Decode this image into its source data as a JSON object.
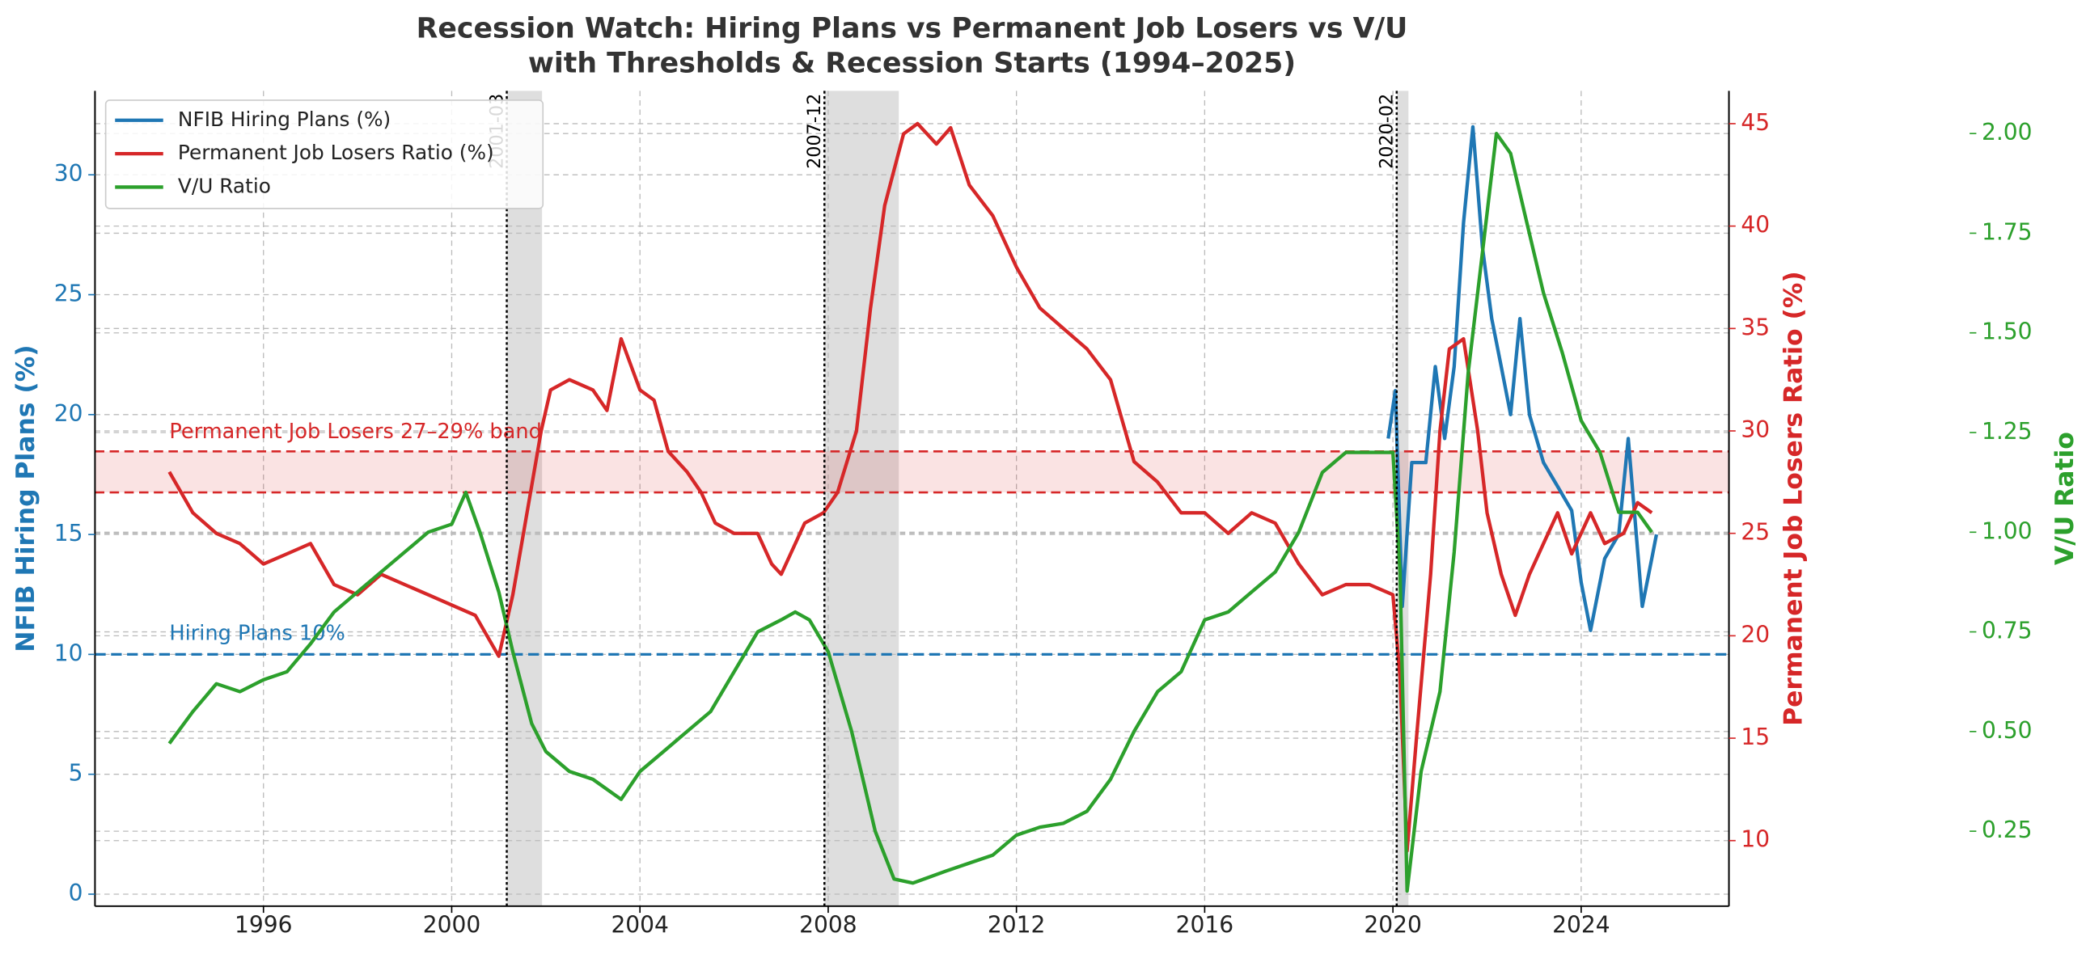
{
  "chart_data": {
    "type": "line",
    "title": [
      "Recession Watch: Hiring Plans vs Permanent Job Losers vs V/U",
      "with Thresholds & Recession Starts (1994–2025)"
    ],
    "ylabel": "NFIB Hiring Plans (%)",
    "y2label": "Permanent Job Losers Ratio (%)",
    "y3label": "V/U Ratio",
    "xlim": [
      1992.42,
      2027.14
    ],
    "xticks": [
      1996,
      2000,
      2004,
      2008,
      2012,
      2016,
      2020,
      2024
    ],
    "ylim": [
      -0.5,
      33.5
    ],
    "yticks": [
      0,
      5,
      10,
      15,
      20,
      25,
      30
    ],
    "y2lim": [
      6.8,
      46.6
    ],
    "y2ticks": [
      10,
      15,
      20,
      25,
      30,
      35,
      40,
      45
    ],
    "y3lim": [
      0.062,
      2.107
    ],
    "y3ticks": [
      0.25,
      {
        "value": 0.5,
        "label": "0.50"
      },
      0.75,
      {
        "value": 1.0,
        "label": "1.00"
      },
      1.25,
      {
        "value": 1.5,
        "label": "1.50"
      },
      1.75,
      {
        "value": 2.0,
        "label": "2.00"
      }
    ],
    "grid": true,
    "legend": "upper left",
    "series": [
      {
        "name": "NFIB Hiring Plans (%)",
        "color": "#1f77b4",
        "axis": "y",
        "x": [
          2019.9,
          2020.05,
          2020.2,
          2020.4,
          2020.7,
          2020.9,
          2021.1,
          2021.3,
          2021.5,
          2021.7,
          2021.9,
          2022.1,
          2022.3,
          2022.5,
          2022.7,
          2022.9,
          2023.2,
          2023.5,
          2023.8,
          2024.0,
          2024.2,
          2024.5,
          2024.8,
          2025.0,
          2025.3,
          2025.5,
          2025.6
        ],
        "values": [
          19,
          21,
          12,
          18,
          18,
          22,
          19,
          22,
          28,
          32,
          27,
          24,
          22,
          20,
          24,
          20,
          18,
          17,
          16,
          13,
          11,
          14,
          15,
          19,
          12,
          14,
          15
        ]
      },
      {
        "name": "Permanent Job Losers Ratio (%)",
        "color": "#d62728",
        "axis": "y2",
        "x": [
          1994.0,
          1994.5,
          1995,
          1995.5,
          1996,
          1996.5,
          1997,
          1997.5,
          1998,
          1998.5,
          1999,
          1999.5,
          2000,
          2000.5,
          2001,
          2001.3,
          2001.6,
          2001.9,
          2002.1,
          2002.5,
          2003,
          2003.3,
          2003.6,
          2004,
          2004.3,
          2004.6,
          2005,
          2005.3,
          2005.6,
          2006,
          2006.5,
          2006.8,
          2007,
          2007.5,
          2007.9,
          2008.2,
          2008.6,
          2008.9,
          2009.2,
          2009.6,
          2009.9,
          2010.3,
          2010.6,
          2011,
          2011.5,
          2012,
          2012.5,
          2013,
          2013.5,
          2014,
          2014.5,
          2015,
          2015.5,
          2016,
          2016.5,
          2017,
          2017.5,
          2018,
          2018.5,
          2019,
          2019.5,
          2020.0,
          2020.15,
          2020.3,
          2020.5,
          2020.8,
          2021,
          2021.2,
          2021.5,
          2021.8,
          2022,
          2022.3,
          2022.6,
          2022.9,
          2023.2,
          2023.5,
          2023.8,
          2024.2,
          2024.5,
          2024.9,
          2025.2,
          2025.5
        ],
        "values": [
          28,
          26,
          25,
          24.5,
          23.5,
          24,
          24.5,
          22.5,
          22,
          23,
          22.5,
          22,
          21.5,
          21,
          19,
          22,
          26,
          30,
          32,
          32.5,
          32,
          31,
          34.5,
          32,
          31.5,
          29,
          28,
          27,
          25.5,
          25,
          25,
          23.5,
          23,
          25.5,
          26,
          27,
          30,
          36,
          41,
          44.5,
          45,
          44,
          44.8,
          42,
          40.5,
          38,
          36,
          35,
          34,
          32.5,
          28.5,
          27.5,
          26,
          26,
          25,
          26,
          25.5,
          23.5,
          22,
          22.5,
          22.5,
          22,
          18,
          9.5,
          15,
          23,
          30,
          34,
          34.5,
          30,
          26,
          23,
          21,
          23,
          24.5,
          26,
          24,
          26,
          24.5,
          25,
          26.5,
          26
        ]
      },
      {
        "name": "V/U Ratio",
        "color": "#2ca02c",
        "axis": "y3",
        "x": [
          1994.0,
          1994.5,
          1995,
          1995.5,
          1996,
          1996.5,
          1997,
          1997.5,
          1998,
          1998.5,
          1999,
          1999.5,
          2000,
          2000.3,
          2000.6,
          2001,
          2001.3,
          2001.7,
          2002,
          2002.5,
          2003,
          2003.6,
          2004,
          2004.5,
          2005,
          2005.5,
          2006,
          2006.5,
          2007,
          2007.3,
          2007.6,
          2008,
          2008.5,
          2009,
          2009.4,
          2009.8,
          2010.5,
          2011,
          2011.5,
          2012,
          2012.5,
          2013,
          2013.5,
          2014,
          2014.5,
          2015,
          2015.5,
          2016,
          2016.5,
          2017,
          2017.5,
          2018,
          2018.5,
          2019,
          2019.5,
          2020.0,
          2020.15,
          2020.3,
          2020.6,
          2021,
          2021.3,
          2021.6,
          2021.9,
          2022.2,
          2022.5,
          2022.8,
          2023.2,
          2023.6,
          2024,
          2024.4,
          2024.8,
          2025.2,
          2025.5
        ],
        "values": [
          0.47,
          0.55,
          0.62,
          0.6,
          0.63,
          0.65,
          0.72,
          0.8,
          0.85,
          0.9,
          0.95,
          1.0,
          1.02,
          1.1,
          1.0,
          0.85,
          0.7,
          0.52,
          0.45,
          0.4,
          0.38,
          0.33,
          0.4,
          0.45,
          0.5,
          0.55,
          0.65,
          0.75,
          0.78,
          0.8,
          0.78,
          0.7,
          0.5,
          0.25,
          0.13,
          0.12,
          0.15,
          0.17,
          0.19,
          0.24,
          0.26,
          0.27,
          0.3,
          0.38,
          0.5,
          0.6,
          0.65,
          0.78,
          0.8,
          0.85,
          0.9,
          1.0,
          1.15,
          1.2,
          1.2,
          1.2,
          0.9,
          0.1,
          0.4,
          0.6,
          0.95,
          1.4,
          1.7,
          2.0,
          1.95,
          1.8,
          1.6,
          1.45,
          1.28,
          1.2,
          1.05,
          1.05,
          1.0
        ]
      }
    ],
    "thresholds": [
      {
        "label": "Hiring Plans 10%",
        "value": 10,
        "axis": "y",
        "color": "#1f77b4"
      }
    ],
    "bands": [
      {
        "label": "Permanent Job Losers 27–29% band",
        "range": [
          27,
          29
        ],
        "axis": "y2",
        "color": "#d62728"
      }
    ],
    "recessions": [
      {
        "label": "2001-03",
        "start": 2001.17,
        "end": 2001.92
      },
      {
        "label": "2007-12",
        "start": 2007.92,
        "end": 2009.5
      },
      {
        "label": "2020-02",
        "start": 2020.08,
        "end": 2020.33
      }
    ]
  }
}
